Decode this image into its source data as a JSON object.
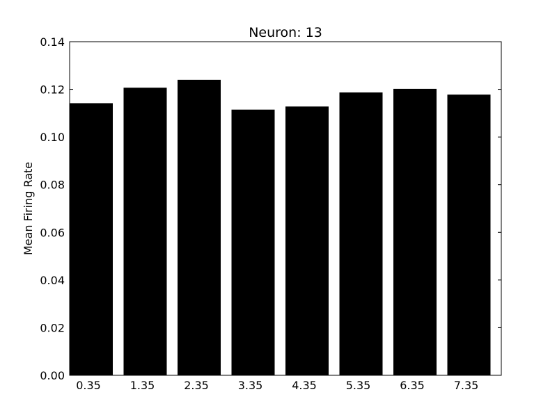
{
  "chart_data": {
    "type": "bar",
    "title": "Neuron: 13",
    "xlabel": "",
    "ylabel": "Mean Firing Rate",
    "categories": [
      "0.35",
      "1.35",
      "2.35",
      "3.35",
      "4.35",
      "5.35",
      "6.35",
      "7.35"
    ],
    "values": [
      0.1142,
      0.1207,
      0.124,
      0.1115,
      0.1128,
      0.1187,
      0.1202,
      0.1178
    ],
    "ylim": [
      0,
      0.14
    ],
    "yticks": [
      "0.00",
      "0.02",
      "0.04",
      "0.06",
      "0.08",
      "0.10",
      "0.12",
      "0.14"
    ],
    "bar_color": "#000000",
    "grid": false,
    "legend": "none"
  }
}
